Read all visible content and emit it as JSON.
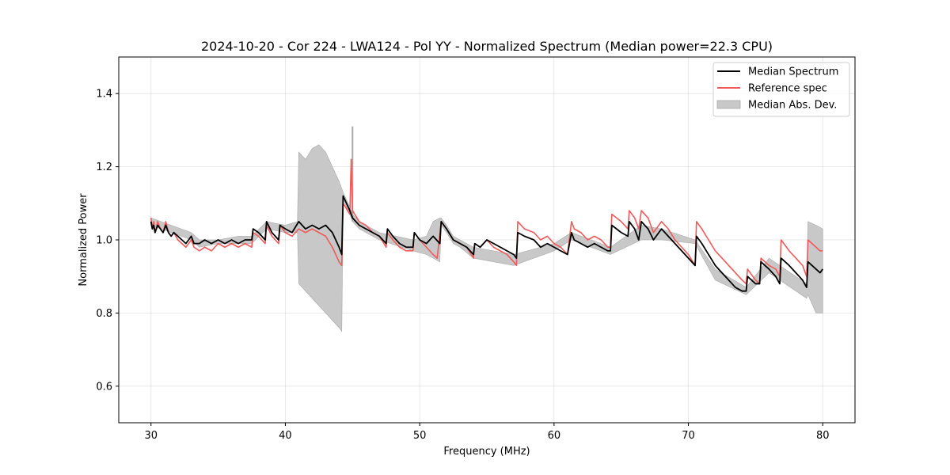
{
  "chart_data": {
    "type": "line",
    "title": "2024-10-20 - Cor 224 - LWA124 - Pol YY - Normalized Spectrum (Median power=22.3 CPU)",
    "xlabel": "Frequency (MHz)",
    "ylabel": "Normalized Power",
    "xlim": [
      27.6,
      82.4
    ],
    "ylim": [
      0.5,
      1.5
    ],
    "xticks": [
      30,
      40,
      50,
      60,
      70,
      80
    ],
    "yticks": [
      0.6,
      0.8,
      1.0,
      1.2,
      1.4
    ],
    "xtick_labels": [
      "30",
      "40",
      "50",
      "60",
      "70",
      "80"
    ],
    "ytick_labels": [
      "0.6",
      "0.8",
      "1.0",
      "1.2",
      "1.4"
    ],
    "grid": true,
    "legend_position": "top-right",
    "legend": [
      {
        "label": "Median Spectrum",
        "kind": "line",
        "color": "#000000"
      },
      {
        "label": "Reference spec",
        "kind": "line",
        "color": "#f05a5a"
      },
      {
        "label": "Median Abs. Dev.",
        "kind": "band",
        "color": "#c8c8c8"
      }
    ],
    "series": [
      {
        "name": "Median Spectrum",
        "color": "#000000",
        "x": [
          30.0,
          30.1,
          30.2,
          30.3,
          30.5,
          30.7,
          30.9,
          31.1,
          31.3,
          31.5,
          31.7,
          32.0,
          32.3,
          32.6,
          33.0,
          33.2,
          33.6,
          34.0,
          34.5,
          35.0,
          35.5,
          36.0,
          36.5,
          37.0,
          37.5,
          37.6,
          38.0,
          38.5,
          38.6,
          39.0,
          39.5,
          39.6,
          40.0,
          40.5,
          41.0,
          41.5,
          42.0,
          42.5,
          43.0,
          43.5,
          44.0,
          44.2,
          44.3,
          44.8,
          45.0,
          45.5,
          46.0,
          46.5,
          47.0,
          47.5,
          47.6,
          48.0,
          48.5,
          49.0,
          49.5,
          49.6,
          50.0,
          50.5,
          51.0,
          51.5,
          51.6,
          52.0,
          52.5,
          53.0,
          53.5,
          54.0,
          54.1,
          54.5,
          55.0,
          55.5,
          56.0,
          56.5,
          57.0,
          57.2,
          57.3,
          57.8,
          58.5,
          59.0,
          59.5,
          60.0,
          60.5,
          61.0,
          61.3,
          61.5,
          62.0,
          62.5,
          63.0,
          63.5,
          64.0,
          64.2,
          64.3,
          65.0,
          65.5,
          65.6,
          66.0,
          66.3,
          66.5,
          67.0,
          67.4,
          68.0,
          68.5,
          69.0,
          69.5,
          70.0,
          70.5,
          70.6,
          71.0,
          71.5,
          72.0,
          72.5,
          73.0,
          73.5,
          74.0,
          74.3,
          74.4,
          75.0,
          75.3,
          75.4,
          76.0,
          76.5,
          76.8,
          76.9,
          77.5,
          78.0,
          78.5,
          78.8,
          78.9,
          79.5,
          79.8,
          80.0
        ],
        "values": [
          1.05,
          1.03,
          1.04,
          1.02,
          1.04,
          1.03,
          1.02,
          1.04,
          1.02,
          1.01,
          1.02,
          1.01,
          1.0,
          0.99,
          1.01,
          0.99,
          0.99,
          1.0,
          0.99,
          1.0,
          0.99,
          1.0,
          0.99,
          1.0,
          1.0,
          1.03,
          1.02,
          1.0,
          1.05,
          1.02,
          1.0,
          1.04,
          1.03,
          1.02,
          1.05,
          1.03,
          1.04,
          1.03,
          1.04,
          1.02,
          0.98,
          0.96,
          1.12,
          1.08,
          1.06,
          1.04,
          1.03,
          1.02,
          1.01,
          0.99,
          1.03,
          1.01,
          0.99,
          0.98,
          0.98,
          1.02,
          1.0,
          0.99,
          1.01,
          0.99,
          1.05,
          1.03,
          1.0,
          0.99,
          0.98,
          0.96,
          0.99,
          0.98,
          1.0,
          0.99,
          0.98,
          0.97,
          0.96,
          0.95,
          1.02,
          1.01,
          1.0,
          0.98,
          0.99,
          0.98,
          0.97,
          0.96,
          1.02,
          1.0,
          0.99,
          0.98,
          0.99,
          0.98,
          0.97,
          0.97,
          1.04,
          1.02,
          1.01,
          1.05,
          1.03,
          1.0,
          1.05,
          1.03,
          1.0,
          1.03,
          1.01,
          0.99,
          0.97,
          0.95,
          0.93,
          1.01,
          0.99,
          0.96,
          0.93,
          0.91,
          0.89,
          0.87,
          0.86,
          0.86,
          0.9,
          0.88,
          0.88,
          0.94,
          0.92,
          0.9,
          0.88,
          0.95,
          0.93,
          0.91,
          0.89,
          0.87,
          0.94,
          0.92,
          0.91,
          0.92
        ]
      },
      {
        "name": "Reference spec",
        "color": "#f05a5a",
        "x": [
          30.0,
          30.1,
          30.2,
          30.3,
          30.5,
          30.7,
          30.9,
          31.1,
          31.3,
          31.5,
          31.7,
          32.0,
          32.3,
          32.6,
          33.0,
          33.2,
          33.6,
          34.0,
          34.5,
          35.0,
          35.5,
          36.0,
          36.5,
          37.0,
          37.5,
          37.6,
          38.0,
          38.5,
          38.6,
          39.0,
          39.5,
          39.6,
          40.0,
          40.5,
          41.0,
          41.5,
          42.0,
          42.5,
          43.0,
          43.5,
          44.0,
          44.2,
          44.3,
          44.8,
          44.9,
          45.0,
          45.5,
          46.0,
          46.5,
          47.0,
          47.5,
          47.6,
          48.0,
          48.5,
          49.0,
          49.5,
          49.6,
          50.0,
          50.5,
          51.0,
          51.3,
          51.6,
          52.0,
          52.5,
          53.0,
          53.5,
          54.0,
          54.1,
          54.5,
          55.0,
          55.5,
          56.0,
          56.5,
          57.0,
          57.2,
          57.3,
          57.8,
          58.5,
          59.0,
          59.5,
          60.0,
          60.5,
          61.0,
          61.3,
          61.5,
          62.0,
          62.5,
          63.0,
          63.5,
          64.0,
          64.2,
          64.3,
          65.0,
          65.5,
          65.6,
          66.0,
          66.3,
          66.5,
          67.0,
          67.4,
          68.0,
          68.5,
          69.0,
          69.5,
          70.0,
          70.5,
          70.6,
          71.0,
          71.5,
          72.0,
          72.5,
          73.0,
          73.5,
          74.0,
          74.3,
          74.4,
          75.0,
          75.3,
          75.4,
          76.0,
          76.5,
          76.8,
          76.9,
          77.5,
          78.0,
          78.5,
          78.8,
          78.9,
          79.5,
          79.8,
          80.0
        ],
        "values": [
          1.06,
          1.03,
          1.05,
          1.02,
          1.05,
          1.03,
          1.02,
          1.05,
          1.02,
          1.01,
          1.02,
          1.0,
          0.99,
          0.98,
          1.0,
          0.98,
          0.97,
          0.98,
          0.97,
          0.99,
          0.98,
          0.99,
          0.98,
          0.99,
          0.98,
          1.02,
          1.01,
          0.99,
          1.04,
          1.01,
          0.99,
          1.04,
          1.02,
          1.01,
          1.03,
          1.02,
          1.03,
          1.02,
          1.01,
          0.98,
          0.94,
          0.93,
          1.1,
          1.07,
          1.22,
          1.08,
          1.05,
          1.04,
          1.02,
          1.01,
          0.98,
          1.02,
          1.0,
          0.98,
          0.97,
          0.97,
          1.02,
          1.0,
          0.98,
          0.96,
          0.95,
          1.05,
          1.03,
          1.0,
          0.99,
          0.98,
          0.95,
          0.99,
          0.98,
          1.0,
          0.98,
          0.97,
          0.96,
          0.94,
          0.93,
          1.05,
          1.03,
          1.02,
          1.0,
          1.01,
          0.99,
          0.98,
          0.96,
          1.05,
          1.03,
          1.02,
          1.0,
          1.01,
          1.0,
          0.98,
          0.98,
          1.07,
          1.05,
          1.03,
          1.08,
          1.06,
          1.03,
          1.08,
          1.06,
          1.02,
          1.05,
          1.03,
          1.0,
          0.98,
          0.96,
          0.93,
          1.05,
          1.03,
          1.0,
          0.97,
          0.95,
          0.93,
          0.91,
          0.89,
          0.88,
          0.92,
          0.89,
          0.88,
          0.95,
          0.93,
          0.92,
          0.9,
          1.0,
          0.97,
          0.95,
          0.93,
          0.9,
          1.0,
          0.98,
          0.97,
          0.97
        ]
      }
    ],
    "band": {
      "name": "Median Abs. Dev.",
      "color": "#c8c8c8",
      "x": [
        30.0,
        33.0,
        33.6,
        35.0,
        36.5,
        37.5,
        38.6,
        40.0,
        40.9,
        41.0,
        41.5,
        42.0,
        42.5,
        43.0,
        43.5,
        44.0,
        44.2,
        44.3,
        44.8,
        45.0,
        45.5,
        47.0,
        49.5,
        50.5,
        51.0,
        51.5,
        51.6,
        52.0,
        52.5,
        53.0,
        54.0,
        57.0,
        60.0,
        61.3,
        64.2,
        66.5,
        68.0,
        70.5,
        72.0,
        74.3,
        76.0,
        78.0,
        78.8,
        78.9,
        79.5,
        80.0
      ],
      "upper": [
        1.06,
        1.02,
        1.0,
        1.0,
        1.01,
        1.01,
        1.05,
        1.04,
        1.05,
        1.24,
        1.22,
        1.25,
        1.26,
        1.24,
        1.2,
        1.16,
        1.14,
        1.13,
        1.09,
        1.07,
        1.05,
        1.02,
        1.0,
        1.01,
        1.05,
        1.06,
        1.06,
        1.04,
        1.01,
        1.0,
        0.98,
        0.96,
        0.99,
        1.02,
        0.98,
        1.04,
        1.03,
        1.0,
        0.92,
        0.87,
        0.95,
        0.9,
        0.88,
        1.05,
        1.04,
        1.03
      ],
      "lower": [
        1.04,
        1.0,
        0.98,
        0.99,
        0.99,
        0.99,
        1.03,
        1.02,
        1.02,
        0.88,
        0.86,
        0.84,
        0.82,
        0.8,
        0.78,
        0.76,
        0.75,
        1.11,
        1.07,
        1.05,
        1.03,
        1.0,
        0.97,
        0.96,
        0.95,
        0.94,
        1.04,
        1.02,
        0.99,
        0.98,
        0.95,
        0.93,
        0.97,
        1.0,
        0.96,
        1.0,
        1.0,
        0.99,
        0.89,
        0.85,
        0.91,
        0.86,
        0.84,
        0.85,
        0.8,
        0.8
      ]
    },
    "spikes": [
      {
        "x": 45.0,
        "band_top": 1.31,
        "band_bottom": 1.05
      }
    ]
  }
}
